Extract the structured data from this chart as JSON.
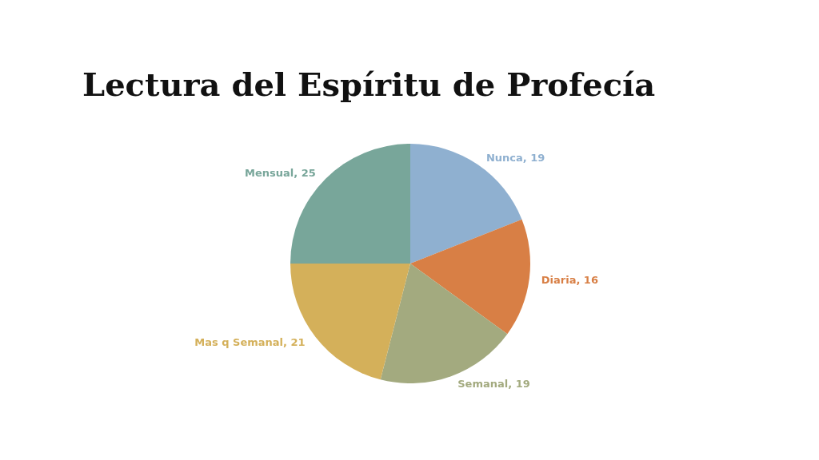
{
  "chart_data": {
    "type": "pie",
    "title": "Lectura del Espíritu de Profecía",
    "categories": [
      "Nunca",
      "Diaria",
      "Semanal",
      "Mas q Semanal",
      "Mensual"
    ],
    "values": [
      19,
      16,
      19,
      21,
      25
    ],
    "value_labels": [
      ", 19",
      ", 16",
      ", 19",
      ", 21",
      ", 25"
    ],
    "colors": [
      "#8fb0d0",
      "#d87f45",
      "#a3aa7f",
      "#d4b05a",
      "#78a69a"
    ],
    "legend": false
  }
}
